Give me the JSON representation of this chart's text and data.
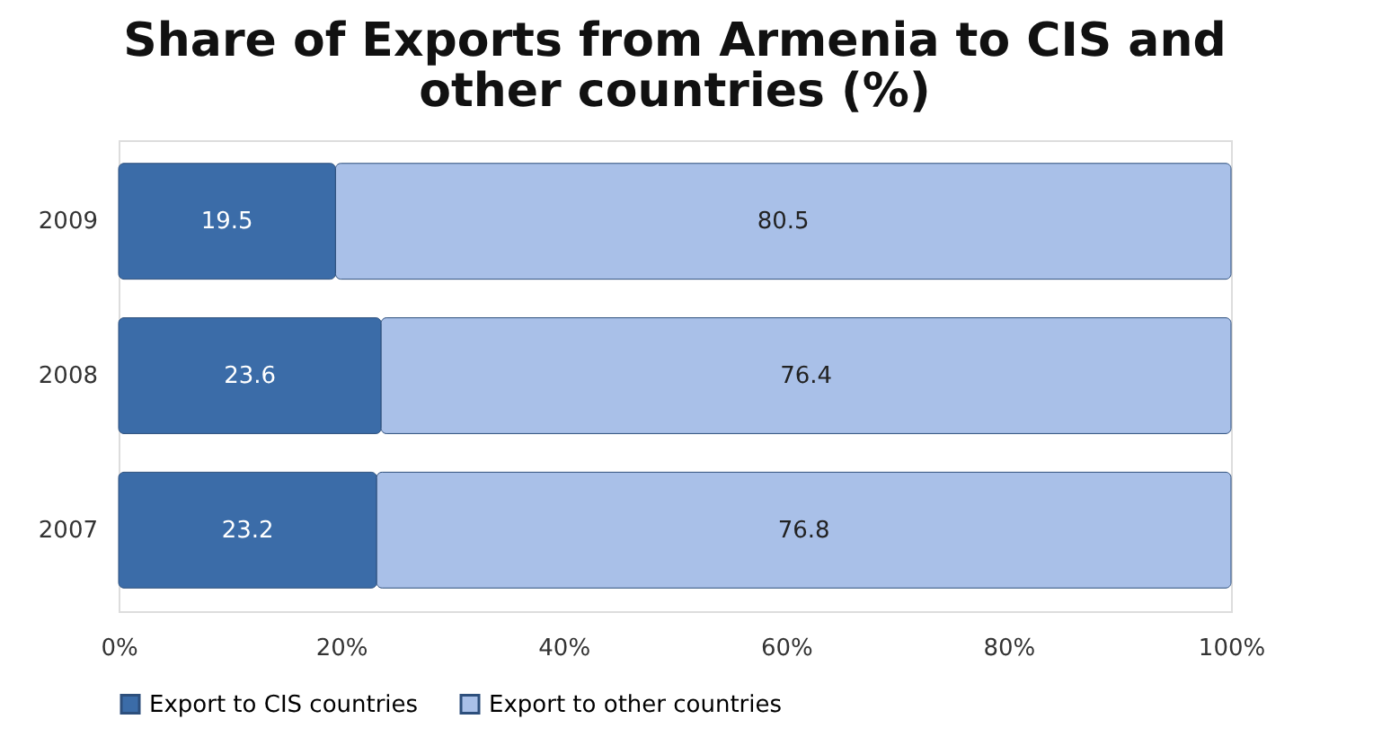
{
  "chart_data": {
    "type": "bar",
    "orientation": "horizontal",
    "stacked": true,
    "title": "Share of Exports from Armenia to CIS and other countries (%)",
    "categories": [
      "2009",
      "2008",
      "2007"
    ],
    "series": [
      {
        "name": "Export to CIS countries",
        "color": "#3b6ca8",
        "values": [
          19.5,
          23.6,
          23.2
        ]
      },
      {
        "name": "Export to other countries",
        "color": "#a9c0e8",
        "values": [
          80.5,
          76.4,
          76.8
        ]
      }
    ],
    "xlim": [
      0,
      100
    ],
    "xticks": [
      {
        "value": 0,
        "label": "0%"
      },
      {
        "value": 20,
        "label": "20%"
      },
      {
        "value": 40,
        "label": "40%"
      },
      {
        "value": 60,
        "label": "60%"
      },
      {
        "value": 80,
        "label": "80%"
      },
      {
        "value": 100,
        "label": "100%"
      }
    ],
    "data_labels": true,
    "grid": false,
    "legend": "bottom"
  }
}
